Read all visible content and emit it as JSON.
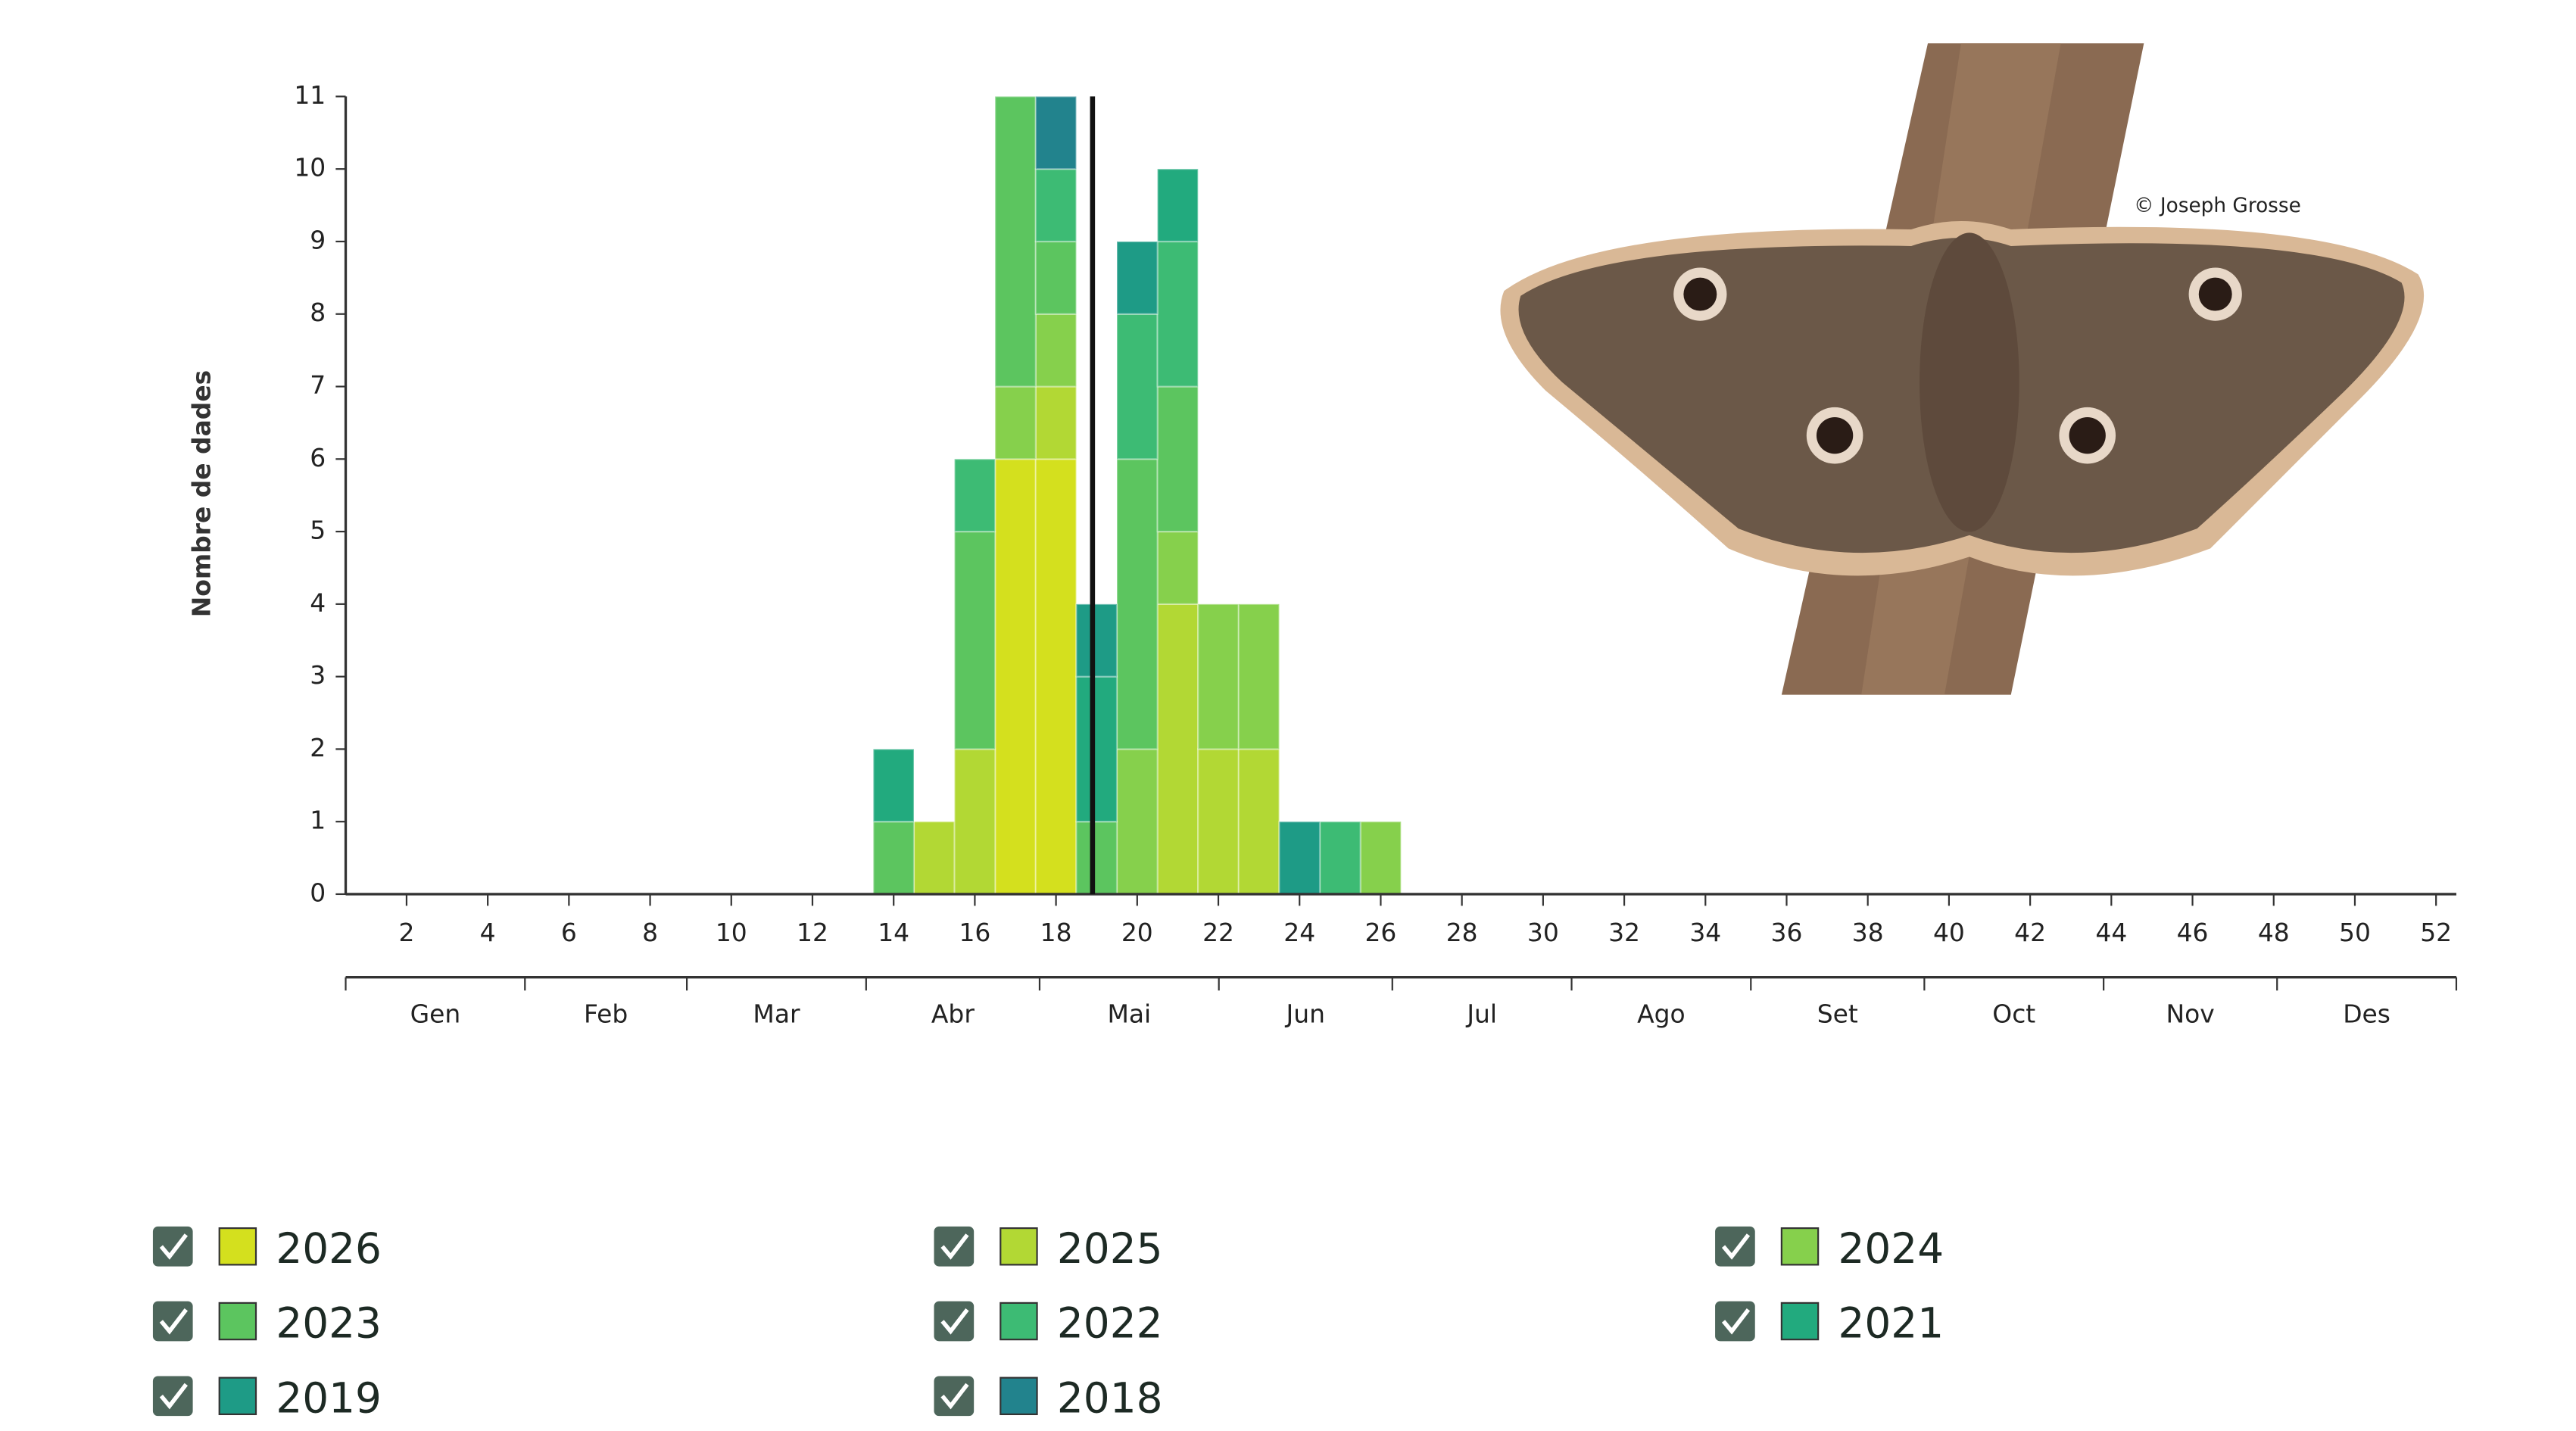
{
  "chart_data": {
    "type": "bar",
    "stacked": true,
    "ylabel": "Nombre de dades",
    "x": [
      1,
      2,
      3,
      4,
      5,
      6,
      7,
      8,
      9,
      10,
      11,
      12,
      13,
      14,
      15,
      16,
      17,
      18,
      19,
      20,
      21,
      22,
      23,
      24,
      25,
      26,
      27,
      28,
      29,
      30,
      31,
      32,
      33,
      34,
      35,
      36,
      37,
      38,
      39,
      40,
      41,
      42,
      43,
      44,
      45,
      46,
      47,
      48,
      49,
      50,
      51,
      52
    ],
    "xlim": [
      0.5,
      52.5
    ],
    "xticks": [
      2,
      4,
      6,
      8,
      10,
      12,
      14,
      16,
      18,
      20,
      22,
      24,
      26,
      28,
      30,
      32,
      34,
      36,
      38,
      40,
      42,
      44,
      46,
      48,
      50,
      52
    ],
    "months": [
      "Gen",
      "Feb",
      "Mar",
      "Abr",
      "Mai",
      "Jun",
      "Jul",
      "Ago",
      "Set",
      "Oct",
      "Nov",
      "Des"
    ],
    "ylim": [
      0,
      11
    ],
    "yticks": [
      0,
      1,
      2,
      3,
      4,
      5,
      6,
      7,
      8,
      9,
      10,
      11
    ],
    "marker_week": 18.9,
    "series": [
      {
        "name": "2026",
        "color": "#d4e01e",
        "values": [
          0,
          0,
          0,
          0,
          0,
          0,
          0,
          0,
          0,
          0,
          0,
          0,
          0,
          0,
          0,
          0,
          6,
          6,
          0,
          0,
          0,
          0,
          0,
          0,
          0,
          0,
          0,
          0,
          0,
          0,
          0,
          0,
          0,
          0,
          0,
          0,
          0,
          0,
          0,
          0,
          0,
          0,
          0,
          0,
          0,
          0,
          0,
          0,
          0,
          0,
          0,
          0
        ]
      },
      {
        "name": "2025",
        "color": "#b2d834",
        "values": [
          0,
          0,
          0,
          0,
          0,
          0,
          0,
          0,
          0,
          0,
          0,
          0,
          0,
          0,
          1,
          2,
          0,
          1,
          0,
          0,
          4,
          2,
          2,
          0,
          0,
          0,
          0,
          0,
          0,
          0,
          0,
          0,
          0,
          0,
          0,
          0,
          0,
          0,
          0,
          0,
          0,
          0,
          0,
          0,
          0,
          0,
          0,
          0,
          0,
          0,
          0,
          0
        ]
      },
      {
        "name": "2024",
        "color": "#86d04c",
        "values": [
          0,
          0,
          0,
          0,
          0,
          0,
          0,
          0,
          0,
          0,
          0,
          0,
          0,
          0,
          0,
          0,
          1,
          1,
          0,
          2,
          1,
          2,
          2,
          0,
          0,
          1,
          0,
          0,
          0,
          0,
          0,
          0,
          0,
          0,
          0,
          0,
          0,
          0,
          0,
          0,
          0,
          0,
          0,
          0,
          0,
          0,
          0,
          0,
          0,
          0,
          0,
          0
        ]
      },
      {
        "name": "2023",
        "color": "#5cc55f",
        "values": [
          0,
          0,
          0,
          0,
          0,
          0,
          0,
          0,
          0,
          0,
          0,
          0,
          0,
          1,
          0,
          3,
          4,
          1,
          1,
          4,
          2,
          0,
          0,
          0,
          0,
          0,
          0,
          0,
          0,
          0,
          0,
          0,
          0,
          0,
          0,
          0,
          0,
          0,
          0,
          0,
          0,
          0,
          0,
          0,
          0,
          0,
          0,
          0,
          0,
          0,
          0,
          0
        ]
      },
      {
        "name": "2022",
        "color": "#3dbb74",
        "values": [
          0,
          0,
          0,
          0,
          0,
          0,
          0,
          0,
          0,
          0,
          0,
          0,
          0,
          0,
          0,
          1,
          0,
          1,
          0,
          2,
          2,
          0,
          0,
          0,
          1,
          0,
          0,
          0,
          0,
          0,
          0,
          0,
          0,
          0,
          0,
          0,
          0,
          0,
          0,
          0,
          0,
          0,
          0,
          0,
          0,
          0,
          0,
          0,
          0,
          0,
          0,
          0
        ]
      },
      {
        "name": "2021",
        "color": "#22aa7e",
        "values": [
          0,
          0,
          0,
          0,
          0,
          0,
          0,
          0,
          0,
          0,
          0,
          0,
          0,
          1,
          0,
          0,
          0,
          0,
          2,
          0,
          1,
          0,
          0,
          0,
          0,
          0,
          0,
          0,
          0,
          0,
          0,
          0,
          0,
          0,
          0,
          0,
          0,
          0,
          0,
          0,
          0,
          0,
          0,
          0,
          0,
          0,
          0,
          0,
          0,
          0,
          0,
          0
        ]
      },
      {
        "name": "2019",
        "color": "#1e9b86",
        "values": [
          0,
          0,
          0,
          0,
          0,
          0,
          0,
          0,
          0,
          0,
          0,
          0,
          0,
          0,
          0,
          0,
          0,
          0,
          1,
          1,
          0,
          0,
          0,
          1,
          0,
          0,
          0,
          0,
          0,
          0,
          0,
          0,
          0,
          0,
          0,
          0,
          0,
          0,
          0,
          0,
          0,
          0,
          0,
          0,
          0,
          0,
          0,
          0,
          0,
          0,
          0,
          0
        ]
      },
      {
        "name": "2018",
        "color": "#22838d",
        "values": [
          0,
          0,
          0,
          0,
          0,
          0,
          0,
          0,
          0,
          0,
          0,
          0,
          0,
          0,
          0,
          0,
          0,
          1,
          0,
          0,
          0,
          0,
          0,
          0,
          0,
          0,
          0,
          0,
          0,
          0,
          0,
          0,
          0,
          0,
          0,
          0,
          0,
          0,
          0,
          0,
          0,
          0,
          0,
          0,
          0,
          0,
          0,
          0,
          0,
          0,
          0,
          0
        ]
      }
    ]
  },
  "photo_credit": "© Joseph Grosse"
}
